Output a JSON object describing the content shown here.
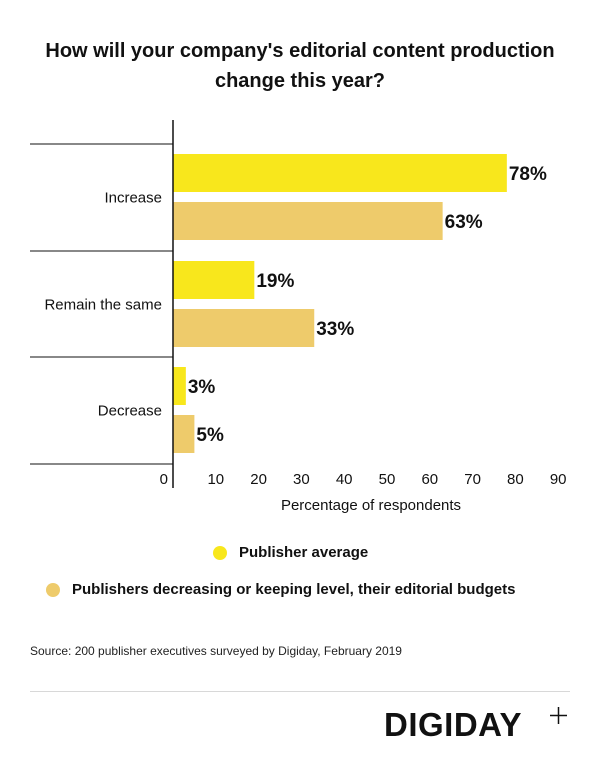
{
  "title": "How will your company's editorial content production change this year?",
  "chart_data": {
    "type": "bar",
    "orientation": "horizontal",
    "categories": [
      "Increase",
      "Remain the same",
      "Decrease"
    ],
    "series": [
      {
        "name": "Publisher average",
        "values": [
          78,
          19,
          3
        ],
        "color": "#f8e71c"
      },
      {
        "name": "Publishers decreasing or keeping level, their editorial budgets",
        "values": [
          63,
          33,
          5
        ],
        "color": "#eecb6b"
      }
    ],
    "data_labels": [
      [
        "78%",
        "19%",
        "3%"
      ],
      [
        "63%",
        "33%",
        "5%"
      ]
    ],
    "xlabel": "Percentage of respondents",
    "ylabel": "",
    "xlim": [
      0,
      90
    ],
    "xticks": [
      "0",
      "10",
      "20",
      "30",
      "40",
      "50",
      "60",
      "70",
      "80",
      "90"
    ],
    "grid": false,
    "legend_position": "bottom"
  },
  "legend": [
    {
      "label": "Publisher average",
      "color": "#f8e71c"
    },
    {
      "label": "Publishers decreasing or keeping level, their editorial budgets",
      "color": "#eecb6b"
    }
  ],
  "source": "Source: 200 publisher executives surveyed by Digiday, February 2019",
  "brand": {
    "logo_text": "DIGIDAY"
  }
}
